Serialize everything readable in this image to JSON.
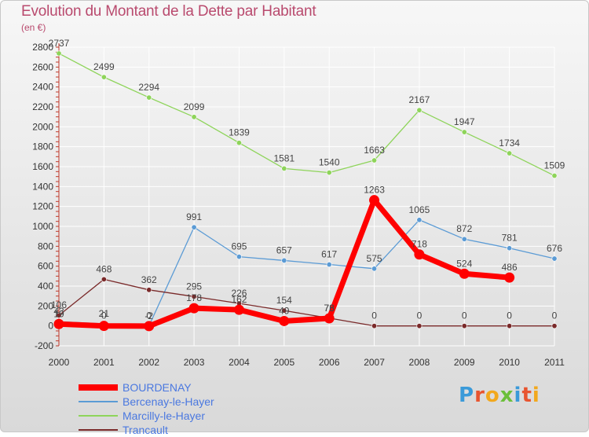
{
  "title": "Evolution du Montant de la Dette par Habitant",
  "subtitle": "(en €)",
  "logo_text": "Proxiti",
  "colors": {
    "title": "#b94a6e",
    "grid": "#ffffff",
    "tick_text": "#333333",
    "legend_text": "#4a78e0"
  },
  "chart_data": {
    "type": "line",
    "title": "Evolution du Montant de la Dette par Habitant",
    "subtitle": "(en €)",
    "x": [
      "2000",
      "2001",
      "2002",
      "2003",
      "2004",
      "2005",
      "2006",
      "2007",
      "2008",
      "2009",
      "2010",
      "2011"
    ],
    "ylim": [
      -200,
      2800
    ],
    "yticks": [
      -200,
      0,
      200,
      400,
      600,
      800,
      1000,
      1200,
      1400,
      1600,
      1800,
      2000,
      2200,
      2400,
      2600,
      2800
    ],
    "grid": true,
    "legend_position": "bottom-left",
    "series": [
      {
        "name": "BOURDENAY",
        "color": "#ff0000",
        "values": [
          19,
          0,
          -2,
          178,
          162,
          49,
          76,
          1263,
          718,
          524,
          486,
          null
        ],
        "labels": [
          "19",
          "0",
          "-2",
          "178",
          "162",
          "49",
          "76",
          "1263",
          "718",
          "524",
          "486",
          ""
        ]
      },
      {
        "name": "Bercenay-le-Hayer",
        "color": "#5b9bd5",
        "values": [
          43,
          21,
          0,
          991,
          695,
          657,
          617,
          575,
          1065,
          872,
          781,
          676
        ],
        "labels": [
          "43",
          "21",
          "0",
          "991",
          "695",
          "657",
          "617",
          "575",
          "1065",
          "872",
          "781",
          "676"
        ]
      },
      {
        "name": "Marcilly-le-Hayer",
        "color": "#8ed45a",
        "values": [
          2737,
          2499,
          2294,
          2099,
          1839,
          1581,
          1540,
          1663,
          2167,
          1947,
          1734,
          1509
        ],
        "labels": [
          "2737",
          "2499",
          "2294",
          "2099",
          "1839",
          "1581",
          "1540",
          "1663",
          "2167",
          "1947",
          "1734",
          "1509"
        ]
      },
      {
        "name": "Trancault",
        "color": "#7a2a2a",
        "values": [
          106,
          468,
          362,
          295,
          226,
          154,
          78,
          0,
          0,
          0,
          0,
          0
        ],
        "labels": [
          "106",
          "468",
          "362",
          "295",
          "226",
          "154",
          "78",
          "0",
          "0",
          "0",
          "0",
          "0"
        ]
      }
    ]
  }
}
